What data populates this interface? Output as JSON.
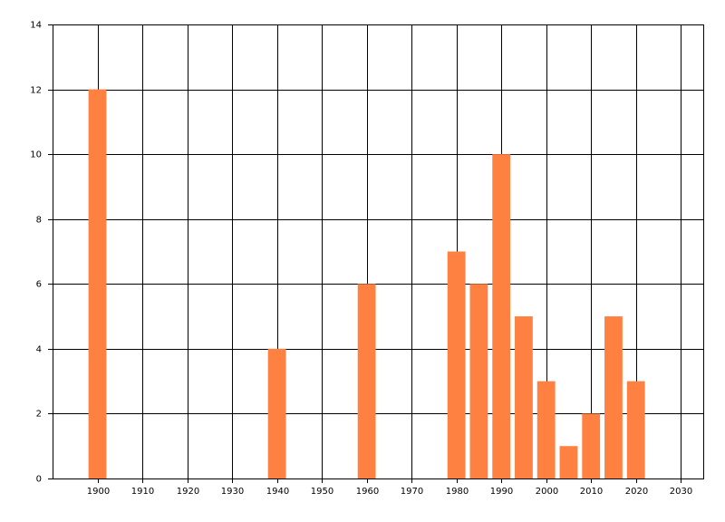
{
  "chart_data": {
    "type": "bar",
    "x": [
      1900,
      1940,
      1960,
      1980,
      1985,
      1990,
      1995,
      2000,
      2005,
      2010,
      2015,
      2020
    ],
    "values": [
      12,
      4,
      6,
      7,
      6,
      10,
      5,
      3,
      1,
      2,
      5,
      3
    ],
    "color": "#ff8142",
    "xlim": [
      1890,
      2035
    ],
    "xticks": [
      1900,
      1910,
      1920,
      1930,
      1940,
      1950,
      1960,
      1970,
      1980,
      1990,
      2000,
      2010,
      2020,
      2030
    ],
    "ylim": [
      0,
      14
    ],
    "yticks": [
      0,
      2,
      4,
      6,
      8,
      10,
      12,
      14
    ],
    "grid": true
  }
}
